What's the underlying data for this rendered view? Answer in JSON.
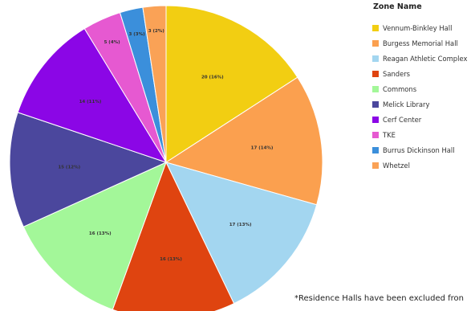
{
  "chart_data": {
    "type": "pie",
    "legend_title": "Zone Name",
    "legend_position": "right",
    "start_angle": "top, clockwise",
    "slices": [
      {
        "name": "Vennum-Binkley Hall",
        "value": 20,
        "label": "20 (16%)",
        "color": "#F2CE12"
      },
      {
        "name": "Burgess Memorial Hall",
        "value": 17,
        "label": "17 (14%)",
        "color": "#FBA04F"
      },
      {
        "name": "Reagan Athletic Complex",
        "value": 17,
        "label": "17 (13%)",
        "color": "#A3D6F0"
      },
      {
        "name": "Sanders",
        "value": 16,
        "label": "16 (13%)",
        "color": "#DF4410"
      },
      {
        "name": "Commons",
        "value": 16,
        "label": "16 (13%)",
        "color": "#A3F799"
      },
      {
        "name": "Melick Library",
        "value": 15,
        "label": "15 (12%)",
        "color": "#4B479D"
      },
      {
        "name": "Cerf Center",
        "value": 14,
        "label": "14 (11%)",
        "color": "#8B06E6"
      },
      {
        "name": "TKE",
        "value": 5,
        "label": "5 (4%)",
        "color": "#E659D1"
      },
      {
        "name": "Burrus Dickinson Hall",
        "value": 3,
        "label": "3 (3%)",
        "color": "#3B8FDB"
      },
      {
        "name": "Whetzel",
        "value": 3,
        "label": "3 (2%)",
        "color": "#FAA256"
      }
    ]
  },
  "footnote": "*Residence Halls have been excluded fron"
}
